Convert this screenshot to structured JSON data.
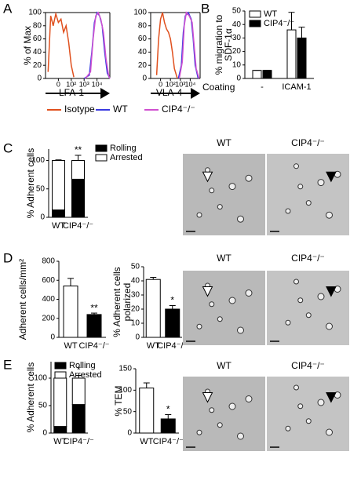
{
  "chart_data": [
    {
      "type": "line",
      "panel": "A",
      "ylabel": "% of Max",
      "xlabel": "LFA-1",
      "ylim": [
        0,
        100
      ],
      "yticks": [
        0,
        20,
        40,
        60,
        80,
        100
      ],
      "xlim": [
        0,
        5
      ],
      "xticks": [
        {
          "value": 1,
          "label": "0"
        },
        {
          "value": 2,
          "label": "10²"
        },
        {
          "value": 3,
          "label": "10³"
        },
        {
          "value": 4,
          "label": "10⁴"
        }
      ],
      "series": [
        {
          "name": "Isotype",
          "color": "#e0501e",
          "x": [
            0.2,
            0.4,
            0.6,
            0.8,
            1.0,
            1.2,
            1.4,
            1.6,
            1.8,
            2.0,
            2.2
          ],
          "values": [
            10,
            95,
            80,
            98,
            85,
            90,
            70,
            80,
            55,
            20,
            2
          ]
        },
        {
          "name": "WT",
          "color": "#3a3ae0",
          "x": [
            3.0,
            3.4,
            3.6,
            3.8,
            4.0,
            4.2,
            4.4,
            4.6,
            4.8,
            5.0
          ],
          "values": [
            0,
            5,
            40,
            85,
            100,
            95,
            80,
            40,
            8,
            0
          ]
        },
        {
          "name": "CIP4⁻/⁻",
          "color": "#d050d0",
          "x": [
            3.1,
            3.5,
            3.7,
            3.9,
            4.1,
            4.3,
            4.5,
            4.7,
            4.9,
            5.0
          ],
          "values": [
            0,
            10,
            60,
            95,
            100,
            90,
            70,
            30,
            5,
            0
          ]
        }
      ]
    },
    {
      "type": "line",
      "xlabel": "VLA-4",
      "ylim": [
        0,
        100
      ],
      "yticks": [
        0,
        20,
        40,
        60,
        80,
        100
      ],
      "xlim": [
        0,
        5
      ],
      "xticks": [
        {
          "value": 1,
          "label": "0"
        },
        {
          "value": 2,
          "label": "10²"
        },
        {
          "value": 3,
          "label": "10³"
        },
        {
          "value": 4,
          "label": "10⁴"
        }
      ],
      "series": [
        {
          "color": "#e0501e",
          "x": [
            0.6,
            0.8,
            1.0,
            1.2,
            1.4,
            1.6,
            1.8,
            2.0,
            2.2,
            2.4,
            2.7
          ],
          "values": [
            5,
            60,
            90,
            100,
            85,
            75,
            70,
            60,
            40,
            15,
            0
          ]
        },
        {
          "color": "#3a3ae0",
          "x": [
            2.8,
            3.1,
            3.3,
            3.5,
            3.8,
            4.1,
            4.3,
            4.5,
            4.8
          ],
          "values": [
            0,
            20,
            70,
            95,
            100,
            90,
            60,
            20,
            0
          ]
        },
        {
          "color": "#d050d0",
          "x": [
            2.9,
            3.2,
            3.4,
            3.6,
            3.9,
            4.2,
            4.4,
            4.6,
            4.9
          ],
          "values": [
            0,
            25,
            80,
            100,
            95,
            85,
            50,
            15,
            0
          ]
        }
      ]
    },
    {
      "type": "bar",
      "panel": "B",
      "ylabel": [
        "% migration to",
        "SDF-1α"
      ],
      "xlabel": "Coating",
      "categories": [
        "-",
        "ICAM-1"
      ],
      "ylim": [
        0,
        50
      ],
      "yticks": [
        0,
        10,
        20,
        30,
        40,
        50
      ],
      "series": [
        {
          "name": "WT",
          "color": "#ffffff",
          "values": [
            6,
            36
          ],
          "errors": [
            0,
            13
          ]
        },
        {
          "name": "CIP4⁻/⁻",
          "color": "#000000",
          "values": [
            6,
            30
          ],
          "errors": [
            0,
            8
          ]
        }
      ]
    },
    {
      "type": "stacked_bar",
      "panel": "C",
      "ylabel": "% Adherent cells",
      "categories": [
        "WT",
        "CIP4⁻/⁻"
      ],
      "ylim": [
        0,
        120
      ],
      "yticks": [
        0,
        50,
        100
      ],
      "series": [
        {
          "name": "Rolling",
          "color": "#000000",
          "values": [
            13,
            67
          ],
          "errors": [
            1,
            6
          ]
        },
        {
          "name": "Arrested",
          "color": "#ffffff",
          "values": [
            87,
            33
          ],
          "errors": [
            1,
            9
          ]
        }
      ],
      "significance": [
        null,
        "**"
      ],
      "image_labels": [
        "WT",
        "CIP4⁻/⁻"
      ]
    },
    {
      "type": "bar",
      "panel": "D",
      "ylabel": "Adherent cells/mm²",
      "categories": [
        "WT",
        "CIP4⁻/⁻"
      ],
      "ylim": [
        0,
        800
      ],
      "yticks": [
        0,
        200,
        400,
        600,
        800
      ],
      "values": [
        540,
        240
      ],
      "errors": [
        80,
        15
      ],
      "colors": [
        "#ffffff",
        "#000000"
      ],
      "significance": [
        null,
        "**"
      ]
    },
    {
      "type": "bar",
      "ylabel": [
        "% Adherent cells",
        "polarized"
      ],
      "categories": [
        "WT",
        "CIP4⁻/⁻"
      ],
      "ylim": [
        0,
        50
      ],
      "yticks": [
        0,
        10,
        20,
        30,
        40,
        50
      ],
      "values": [
        41,
        20
      ],
      "errors": [
        1.5,
        2.5
      ],
      "colors": [
        "#ffffff",
        "#000000"
      ],
      "significance": [
        null,
        "*"
      ],
      "image_labels": [
        "WT",
        "CIP4⁻/⁻"
      ]
    },
    {
      "type": "stacked_bar",
      "panel": "E",
      "ylabel": "% Adherent cells",
      "categories": [
        "WT",
        "CIP4⁻/⁻"
      ],
      "ylim": [
        0,
        130
      ],
      "yticks": [
        0,
        50,
        100
      ],
      "series": [
        {
          "name": "Rolling",
          "color": "#000000",
          "values": [
            12,
            52
          ],
          "errors": [
            1,
            10
          ]
        },
        {
          "name": "Arrested",
          "color": "#ffffff",
          "values": [
            88,
            48
          ],
          "errors": [
            1,
            5
          ]
        }
      ],
      "significance": [
        null,
        "*"
      ]
    },
    {
      "type": "bar",
      "ylabel": "% TEM",
      "categories": [
        "WT",
        "CIP4⁻/⁻"
      ],
      "ylim": [
        0,
        150
      ],
      "yticks": [
        0,
        50,
        100,
        150
      ],
      "values": [
        105,
        33
      ],
      "errors": [
        12,
        10
      ],
      "colors": [
        "#ffffff",
        "#000000"
      ],
      "significance": [
        null,
        "*"
      ],
      "image_labels": [
        "WT",
        "CIP4⁻/⁻"
      ]
    }
  ]
}
